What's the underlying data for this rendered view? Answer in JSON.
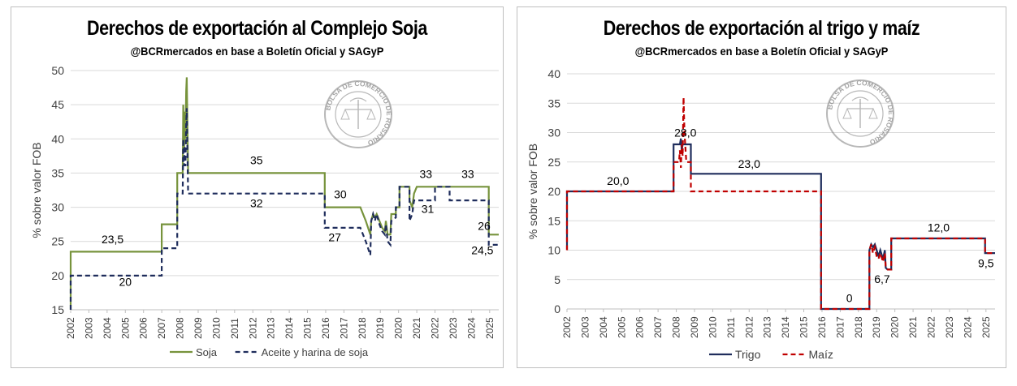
{
  "chart_data": [
    {
      "type": "line",
      "title": "Derechos de exportación al Complejo Soja",
      "subtitle": "@BCRmercados en base a Boletín Oficial y SAGyP",
      "ylabel": "% sobre valor FOB",
      "xlabel": "",
      "ylim": [
        15,
        50
      ],
      "yticks": [
        15,
        20,
        25,
        30,
        35,
        40,
        45,
        50
      ],
      "xlim": [
        2002,
        2025.5
      ],
      "xticks": [
        "2002",
        "2003",
        "2004",
        "2005",
        "2006",
        "2007",
        "2008",
        "2009",
        "2010",
        "2011",
        "2012",
        "2013",
        "2014",
        "2015",
        "2016",
        "2017",
        "2018",
        "2019",
        "2020",
        "2021",
        "2022",
        "2023",
        "2024",
        "2025"
      ],
      "grid": true,
      "legend_position": "bottom",
      "series": [
        {
          "name": "Soja",
          "color": "#77933c",
          "dash": "solid",
          "points": [
            [
              2002.0,
              15
            ],
            [
              2002.0,
              23.5
            ],
            [
              2007.0,
              23.5
            ],
            [
              2007.0,
              27.5
            ],
            [
              2007.85,
              27.5
            ],
            [
              2007.85,
              35
            ],
            [
              2008.15,
              35
            ],
            [
              2008.18,
              45
            ],
            [
              2008.22,
              38
            ],
            [
              2008.26,
              44
            ],
            [
              2008.3,
              40
            ],
            [
              2008.34,
              47
            ],
            [
              2008.37,
              49
            ],
            [
              2008.4,
              44
            ],
            [
              2008.45,
              35
            ],
            [
              2015.95,
              35
            ],
            [
              2015.95,
              30
            ],
            [
              2017.9,
              30
            ],
            [
              2018.2,
              28
            ],
            [
              2018.45,
              26
            ],
            [
              2018.5,
              28
            ],
            [
              2018.6,
              29
            ],
            [
              2018.7,
              28.5
            ],
            [
              2018.8,
              29
            ],
            [
              2018.95,
              28
            ],
            [
              2019.1,
              27
            ],
            [
              2019.25,
              26.5
            ],
            [
              2019.3,
              28
            ],
            [
              2019.4,
              26
            ],
            [
              2019.55,
              26
            ],
            [
              2019.6,
              29
            ],
            [
              2019.85,
              29
            ],
            [
              2019.85,
              30
            ],
            [
              2020.05,
              30
            ],
            [
              2020.05,
              33
            ],
            [
              2020.6,
              33
            ],
            [
              2020.6,
              31
            ],
            [
              2020.75,
              30
            ],
            [
              2020.85,
              32
            ],
            [
              2021.0,
              33
            ],
            [
              2024.95,
              33
            ],
            [
              2024.95,
              26
            ],
            [
              2025.5,
              26
            ]
          ]
        },
        {
          "name": "Aceite y harina de soja",
          "color": "#1f2d5c",
          "dash": "dashed",
          "points": [
            [
              2002.0,
              15
            ],
            [
              2002.0,
              20
            ],
            [
              2007.0,
              20
            ],
            [
              2007.0,
              24
            ],
            [
              2007.85,
              24
            ],
            [
              2007.85,
              32
            ],
            [
              2008.15,
              32
            ],
            [
              2008.18,
              40
            ],
            [
              2008.22,
              36
            ],
            [
              2008.26,
              39
            ],
            [
              2008.3,
              36
            ],
            [
              2008.34,
              42
            ],
            [
              2008.37,
              44.5
            ],
            [
              2008.4,
              40
            ],
            [
              2008.45,
              32
            ],
            [
              2015.95,
              32
            ],
            [
              2015.95,
              27
            ],
            [
              2017.9,
              27
            ],
            [
              2018.2,
              25
            ],
            [
              2018.45,
              23
            ],
            [
              2018.5,
              28
            ],
            [
              2018.6,
              29
            ],
            [
              2018.7,
              28
            ],
            [
              2018.8,
              29
            ],
            [
              2018.95,
              27.5
            ],
            [
              2019.1,
              26.5
            ],
            [
              2019.25,
              26
            ],
            [
              2019.3,
              27.5
            ],
            [
              2019.4,
              25
            ],
            [
              2019.55,
              24.5
            ],
            [
              2019.6,
              28
            ],
            [
              2019.85,
              28.5
            ],
            [
              2019.85,
              30
            ],
            [
              2020.05,
              30
            ],
            [
              2020.05,
              33
            ],
            [
              2020.6,
              33
            ],
            [
              2020.6,
              28
            ],
            [
              2020.75,
              29
            ],
            [
              2020.85,
              31
            ],
            [
              2022.0,
              31
            ],
            [
              2022.0,
              33
            ],
            [
              2022.8,
              33
            ],
            [
              2022.8,
              31
            ],
            [
              2024.95,
              31
            ],
            [
              2024.95,
              24.5
            ],
            [
              2025.5,
              24.5
            ]
          ]
        }
      ],
      "annotations": [
        {
          "text": "23,5",
          "x": 2004.3,
          "y": 24.7
        },
        {
          "text": "20",
          "x": 2005.0,
          "y": 18.5
        },
        {
          "text": "35",
          "x": 2012.2,
          "y": 36.3
        },
        {
          "text": "32",
          "x": 2012.2,
          "y": 30.0
        },
        {
          "text": "30",
          "x": 2016.8,
          "y": 31.3
        },
        {
          "text": "27",
          "x": 2016.5,
          "y": 25.0
        },
        {
          "text": "33",
          "x": 2021.5,
          "y": 34.3
        },
        {
          "text": "33",
          "x": 2023.8,
          "y": 34.3
        },
        {
          "text": "31",
          "x": 2021.6,
          "y": 29.2
        },
        {
          "text": "26",
          "x": 2024.7,
          "y": 26.7
        },
        {
          "text": "24,5",
          "x": 2024.6,
          "y": 23.1
        }
      ]
    },
    {
      "type": "line",
      "title": "Derechos de exportación al trigo y maíz",
      "subtitle": "@BCRmercados en base a Boletín Oficial y SAGyP",
      "ylabel": "% sobre valor FOB",
      "xlabel": "",
      "ylim": [
        0,
        40
      ],
      "yticks": [
        0,
        5,
        10,
        15,
        20,
        25,
        30,
        35,
        40
      ],
      "xlim": [
        2002,
        2025.5
      ],
      "xticks": [
        "2002",
        "2003",
        "2004",
        "2005",
        "2006",
        "2007",
        "2008",
        "2009",
        "2010",
        "2011",
        "2012",
        "2013",
        "2014",
        "2015",
        "2016",
        "2017",
        "2018",
        "2019",
        "2020",
        "2021",
        "2022",
        "2023",
        "2024",
        "2025"
      ],
      "grid": true,
      "legend_position": "bottom",
      "series": [
        {
          "name": "Trigo",
          "color": "#1f2d5c",
          "dash": "solid",
          "points": [
            [
              2002.0,
              10
            ],
            [
              2002.0,
              20
            ],
            [
              2007.85,
              20
            ],
            [
              2007.85,
              28
            ],
            [
              2008.2,
              28
            ],
            [
              2008.25,
              29
            ],
            [
              2008.3,
              27
            ],
            [
              2008.35,
              28
            ],
            [
              2008.8,
              28
            ],
            [
              2008.8,
              23
            ],
            [
              2015.95,
              23
            ],
            [
              2015.95,
              0
            ],
            [
              2018.6,
              0
            ],
            [
              2018.6,
              10
            ],
            [
              2018.7,
              11
            ],
            [
              2018.8,
              10.5
            ],
            [
              2018.9,
              11
            ],
            [
              2019.0,
              10
            ],
            [
              2019.1,
              9
            ],
            [
              2019.2,
              10
            ],
            [
              2019.35,
              8.5
            ],
            [
              2019.45,
              10
            ],
            [
              2019.5,
              7
            ],
            [
              2019.6,
              6.7
            ],
            [
              2019.8,
              6.7
            ],
            [
              2019.8,
              12
            ],
            [
              2024.95,
              12
            ],
            [
              2024.95,
              9.5
            ],
            [
              2025.5,
              9.5
            ]
          ]
        },
        {
          "name": "Maíz",
          "color": "#c00000",
          "dash": "dashed",
          "points": [
            [
              2002.0,
              10
            ],
            [
              2002.0,
              20
            ],
            [
              2007.85,
              20
            ],
            [
              2007.85,
              25
            ],
            [
              2008.15,
              25
            ],
            [
              2008.2,
              27
            ],
            [
              2008.25,
              24
            ],
            [
              2008.3,
              28
            ],
            [
              2008.35,
              26
            ],
            [
              2008.4,
              36
            ],
            [
              2008.45,
              30
            ],
            [
              2008.55,
              25
            ],
            [
              2008.8,
              25
            ],
            [
              2008.8,
              20
            ],
            [
              2015.95,
              20
            ],
            [
              2015.95,
              0
            ],
            [
              2018.6,
              0
            ],
            [
              2018.6,
              10
            ],
            [
              2018.7,
              11
            ],
            [
              2018.8,
              9.5
            ],
            [
              2018.9,
              10.5
            ],
            [
              2019.0,
              9
            ],
            [
              2019.1,
              8.5
            ],
            [
              2019.2,
              9.5
            ],
            [
              2019.35,
              8
            ],
            [
              2019.45,
              9.5
            ],
            [
              2019.5,
              7
            ],
            [
              2019.6,
              6.7
            ],
            [
              2019.8,
              6.7
            ],
            [
              2019.8,
              12
            ],
            [
              2024.95,
              12
            ],
            [
              2024.95,
              9.5
            ],
            [
              2025.5,
              9.5
            ]
          ]
        }
      ],
      "annotations": [
        {
          "text": "20,0",
          "x": 2004.8,
          "y": 21.1
        },
        {
          "text": "28,0",
          "x": 2008.5,
          "y": 29.3
        },
        {
          "text": "23,0",
          "x": 2012.0,
          "y": 24.0
        },
        {
          "text": "0",
          "x": 2017.5,
          "y": 1.2
        },
        {
          "text": "6,7",
          "x": 2019.3,
          "y": 4.4
        },
        {
          "text": "12,0",
          "x": 2022.4,
          "y": 13.2
        },
        {
          "text": "9,5",
          "x": 2025.0,
          "y": 7.1
        }
      ]
    }
  ]
}
